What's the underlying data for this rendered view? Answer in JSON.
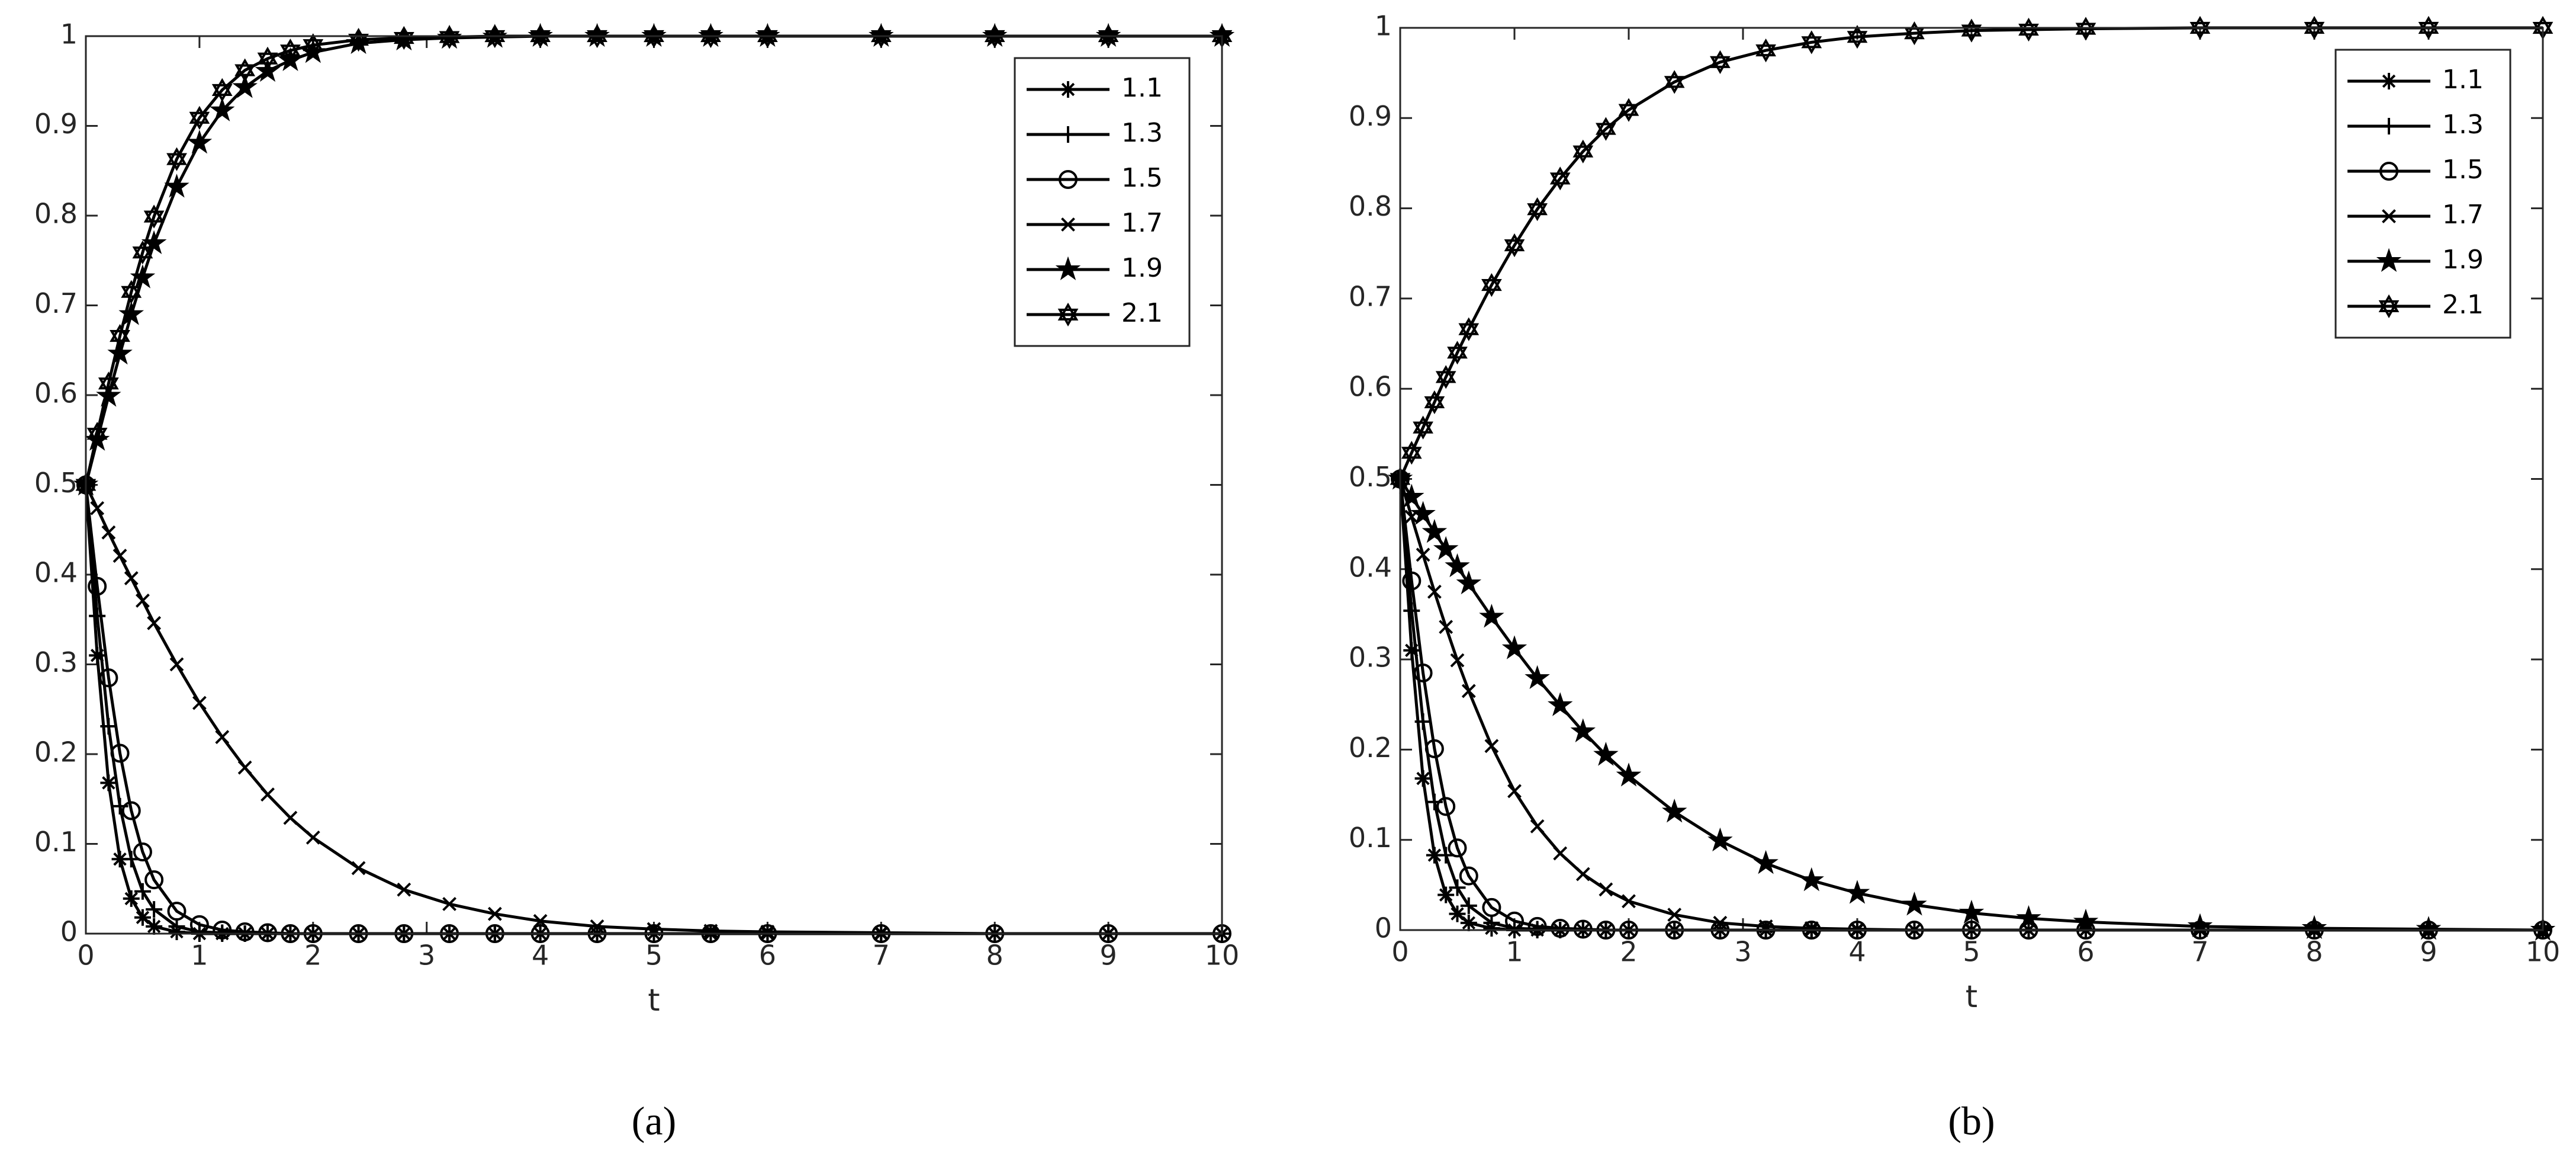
{
  "chart_data": [
    {
      "type": "line",
      "label": "(a)",
      "xlabel": "t",
      "xlim": [
        0,
        10
      ],
      "ylim": [
        0,
        1
      ],
      "xticks": [
        0,
        1,
        2,
        3,
        4,
        5,
        6,
        7,
        8,
        9,
        10
      ],
      "yticks": [
        0,
        0.1,
        0.2,
        0.3,
        0.4,
        0.5,
        0.6,
        0.7,
        0.8,
        0.9,
        1
      ],
      "legend": "northeast",
      "x": [
        0,
        0.1,
        0.2,
        0.3,
        0.4,
        0.5,
        0.6,
        0.8,
        1,
        1.2,
        1.4,
        1.6,
        1.8,
        2,
        2.4,
        2.8,
        3.2,
        3.6,
        4,
        4.5,
        5,
        5.5,
        6,
        7,
        8,
        9,
        10
      ],
      "series": [
        {
          "name": "1.1",
          "color": "#000000",
          "marker": "asterisk",
          "values": [
            0.5,
            0.31,
            0.168,
            0.083,
            0.039,
            0.018,
            0.008,
            0.002,
            0,
            0,
            0,
            0,
            0,
            0,
            0,
            0,
            0,
            0,
            0,
            0,
            0,
            0,
            0,
            0,
            0,
            0,
            0
          ]
        },
        {
          "name": "1.3",
          "color": "#000000",
          "marker": "plus",
          "values": [
            0.5,
            0.354,
            0.231,
            0.142,
            0.083,
            0.047,
            0.027,
            0.008,
            0.002,
            0.001,
            0,
            0,
            0,
            0,
            0,
            0,
            0,
            0,
            0,
            0,
            0,
            0,
            0,
            0,
            0,
            0,
            0
          ]
        },
        {
          "name": "1.5",
          "color": "#000000",
          "marker": "circle",
          "values": [
            0.5,
            0.387,
            0.285,
            0.201,
            0.137,
            0.091,
            0.06,
            0.025,
            0.01,
            0.004,
            0.002,
            0.001,
            0,
            0,
            0,
            0,
            0,
            0,
            0,
            0,
            0,
            0,
            0,
            0,
            0,
            0,
            0
          ]
        },
        {
          "name": "1.7",
          "color": "#000000",
          "marker": "x",
          "values": [
            0.5,
            0.474,
            0.447,
            0.421,
            0.396,
            0.371,
            0.346,
            0.3,
            0.257,
            0.219,
            0.185,
            0.155,
            0.129,
            0.107,
            0.073,
            0.049,
            0.033,
            0.022,
            0.014,
            0.008,
            0.005,
            0.003,
            0.002,
            0.001,
            0,
            0,
            0
          ]
        },
        {
          "name": "1.9",
          "color": "#000000",
          "marker": "star",
          "values": [
            0.5,
            0.55,
            0.599,
            0.646,
            0.69,
            0.731,
            0.769,
            0.832,
            0.881,
            0.917,
            0.943,
            0.961,
            0.973,
            0.982,
            0.992,
            0.996,
            0.998,
            0.999,
            1,
            1,
            1,
            1,
            1,
            1,
            1,
            1,
            1
          ]
        },
        {
          "name": "2.1",
          "color": "#000000",
          "marker": "hexagram",
          "values": [
            0.5,
            0.557,
            0.613,
            0.666,
            0.715,
            0.759,
            0.799,
            0.863,
            0.909,
            0.94,
            0.962,
            0.975,
            0.984,
            0.99,
            0.996,
            0.998,
            0.999,
            1,
            1,
            1,
            1,
            1,
            1,
            1,
            1,
            1,
            1
          ]
        }
      ]
    },
    {
      "type": "line",
      "label": "(b)",
      "xlabel": "t",
      "xlim": [
        0,
        10
      ],
      "ylim": [
        0,
        1
      ],
      "xticks": [
        0,
        1,
        2,
        3,
        4,
        5,
        6,
        7,
        8,
        9,
        10
      ],
      "yticks": [
        0,
        0.1,
        0.2,
        0.3,
        0.4,
        0.5,
        0.6,
        0.7,
        0.8,
        0.9,
        1
      ],
      "legend": "northeast",
      "x": [
        0,
        0.1,
        0.2,
        0.3,
        0.4,
        0.5,
        0.6,
        0.8,
        1,
        1.2,
        1.4,
        1.6,
        1.8,
        2,
        2.4,
        2.8,
        3.2,
        3.6,
        4,
        4.5,
        5,
        5.5,
        6,
        7,
        8,
        9,
        10
      ],
      "series": [
        {
          "name": "1.1",
          "color": "#000000",
          "marker": "asterisk",
          "values": [
            0.5,
            0.31,
            0.168,
            0.083,
            0.039,
            0.018,
            0.008,
            0.002,
            0,
            0,
            0,
            0,
            0,
            0,
            0,
            0,
            0,
            0,
            0,
            0,
            0,
            0,
            0,
            0,
            0,
            0,
            0
          ]
        },
        {
          "name": "1.3",
          "color": "#000000",
          "marker": "plus",
          "values": [
            0.5,
            0.354,
            0.231,
            0.142,
            0.083,
            0.047,
            0.027,
            0.008,
            0.002,
            0.001,
            0,
            0,
            0,
            0,
            0,
            0,
            0,
            0,
            0,
            0,
            0,
            0,
            0,
            0,
            0,
            0,
            0
          ]
        },
        {
          "name": "1.5",
          "color": "#000000",
          "marker": "circle",
          "values": [
            0.5,
            0.387,
            0.285,
            0.201,
            0.137,
            0.091,
            0.06,
            0.025,
            0.01,
            0.004,
            0.002,
            0.001,
            0,
            0,
            0,
            0,
            0,
            0,
            0,
            0,
            0,
            0,
            0,
            0,
            0,
            0,
            0
          ]
        },
        {
          "name": "1.7",
          "color": "#000000",
          "marker": "x",
          "values": [
            0.5,
            0.458,
            0.416,
            0.375,
            0.336,
            0.299,
            0.265,
            0.204,
            0.154,
            0.115,
            0.085,
            0.062,
            0.045,
            0.032,
            0.017,
            0.008,
            0.004,
            0.002,
            0.001,
            0,
            0,
            0,
            0,
            0,
            0,
            0,
            0
          ]
        },
        {
          "name": "1.9",
          "color": "#000000",
          "marker": "star",
          "values": [
            0.5,
            0.48,
            0.461,
            0.441,
            0.422,
            0.403,
            0.384,
            0.347,
            0.312,
            0.279,
            0.249,
            0.22,
            0.194,
            0.171,
            0.131,
            0.099,
            0.074,
            0.055,
            0.041,
            0.028,
            0.019,
            0.013,
            0.009,
            0.004,
            0.002,
            0.001,
            0
          ]
        },
        {
          "name": "2.1",
          "color": "#000000",
          "marker": "hexagram",
          "values": [
            0.5,
            0.529,
            0.557,
            0.585,
            0.613,
            0.64,
            0.666,
            0.715,
            0.759,
            0.799,
            0.833,
            0.863,
            0.888,
            0.909,
            0.94,
            0.962,
            0.975,
            0.984,
            0.99,
            0.994,
            0.997,
            0.998,
            0.999,
            1,
            1,
            1,
            1
          ]
        }
      ]
    }
  ]
}
